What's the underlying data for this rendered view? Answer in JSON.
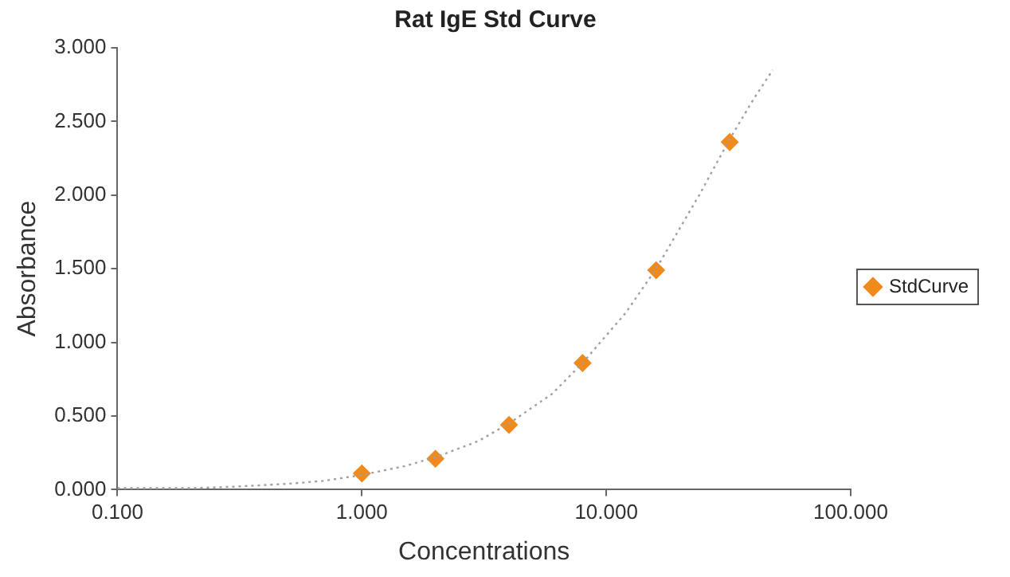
{
  "chart_data": {
    "type": "scatter",
    "title": "Rat IgE Std Curve",
    "xlabel": "Concentrations",
    "ylabel": "Absorbance",
    "log": "x",
    "grid": false,
    "legend": "right",
    "marker": "diamond",
    "xlim": [
      0.1,
      100
    ],
    "xticks": [
      {
        "value": 0.1,
        "label": "0.100"
      },
      {
        "value": 1,
        "label": "1.000"
      },
      {
        "value": 10,
        "label": "10.000"
      },
      {
        "value": 100,
        "label": "100.000"
      }
    ],
    "ylim": [
      0,
      3
    ],
    "yticks": [
      {
        "value": 0,
        "label": "0.000"
      },
      {
        "value": 0.5,
        "label": "0.500"
      },
      {
        "value": 1,
        "label": "1.000"
      },
      {
        "value": 1.5,
        "label": "1.500"
      },
      {
        "value": 2,
        "label": "2.000"
      },
      {
        "value": 2.5,
        "label": "2.500"
      },
      {
        "value": 3,
        "label": "3.000"
      }
    ],
    "series": [
      {
        "type": "line",
        "color": "#a0a0a0",
        "line_style": "dotted",
        "marker": "none",
        "x": [
          0.1,
          0.2,
          0.3,
          0.5,
          0.7,
          1,
          1.5,
          2,
          3,
          4,
          6,
          8,
          12,
          16,
          24,
          32,
          40,
          48
        ],
        "values": [
          0.01,
          0.01,
          0.02,
          0.04,
          0.06,
          0.1,
          0.16,
          0.22,
          0.33,
          0.45,
          0.65,
          0.86,
          1.2,
          1.5,
          2.0,
          2.38,
          2.65,
          2.85
        ]
      },
      {
        "type": "scatter",
        "name": "StdCurve",
        "color": "#f08a1c",
        "x": [
          1,
          2,
          4,
          8,
          16,
          32
        ],
        "values": [
          0.11,
          0.21,
          0.44,
          0.86,
          1.49,
          2.36
        ]
      }
    ]
  }
}
